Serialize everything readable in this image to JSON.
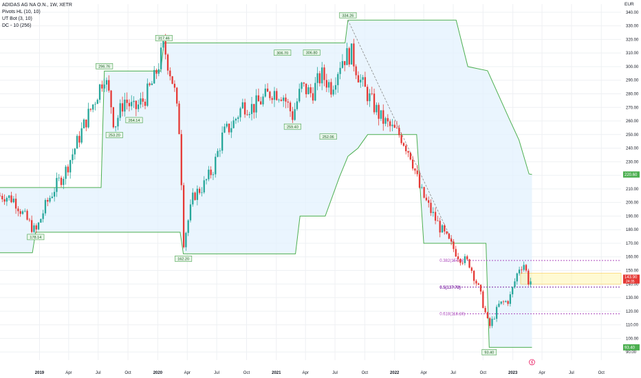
{
  "chart_title": "ADIDAS AG NA O.N., 1W, XETR",
  "indicators": [
    "Pivots HL (10, 10)",
    "UT Bot (3, 10)",
    "DC - 10 (256)"
  ],
  "currency": "EUR",
  "colors": {
    "up": "#26a69a",
    "down": "#e53935",
    "channel_line": "#4caf50",
    "channel_fill": "#e3f2fd",
    "fib": "#ab47bc",
    "fib_mid": "#7b1fa2",
    "grid": "#eef0f3"
  },
  "chart_data": {
    "type": "candlestick",
    "title": "ADIDAS AG NA O.N., 1W, XETR",
    "x_ticks": [
      "2019",
      "Apr",
      "Jul",
      "Oct",
      "2020",
      "Apr",
      "Jul",
      "Oct",
      "2021",
      "Apr",
      "Jul",
      "Oct",
      "2022",
      "Apr",
      "Jul",
      "Oct",
      "2023",
      "Apr",
      "Jul",
      "Oct"
    ],
    "y_ticks": [
      "90.00",
      "100.00",
      "110.00",
      "120.00",
      "130.00",
      "140.00",
      "150.00",
      "160.00",
      "170.00",
      "180.00",
      "190.00",
      "200.00",
      "210.00",
      "220.00",
      "230.00",
      "240.00",
      "250.00",
      "260.00",
      "270.00",
      "280.00",
      "290.00",
      "300.00",
      "310.00",
      "320.00",
      "330.00",
      "340.00"
    ],
    "ylim": [
      84,
      346
    ],
    "xlim": [
      "2018-09",
      "2023-12"
    ],
    "grid": true,
    "series": [
      {
        "name": "Close",
        "values": [
          {
            "date": "2018-09-15",
            "close": 205
          },
          {
            "date": "2018-10-15",
            "close": 202
          },
          {
            "date": "2018-11-15",
            "close": 190
          },
          {
            "date": "2018-12-20",
            "close": 178
          },
          {
            "date": "2019-01-20",
            "close": 198
          },
          {
            "date": "2019-02-20",
            "close": 212
          },
          {
            "date": "2019-03-20",
            "close": 222
          },
          {
            "date": "2019-04-20",
            "close": 240
          },
          {
            "date": "2019-05-20",
            "close": 258
          },
          {
            "date": "2019-06-20",
            "close": 275
          },
          {
            "date": "2019-07-20",
            "close": 294
          },
          {
            "date": "2019-08-10",
            "close": 272
          },
          {
            "date": "2019-08-20",
            "close": 256
          },
          {
            "date": "2019-09-20",
            "close": 276
          },
          {
            "date": "2019-10-20",
            "close": 268
          },
          {
            "date": "2019-11-20",
            "close": 276
          },
          {
            "date": "2019-12-20",
            "close": 290
          },
          {
            "date": "2020-01-20",
            "close": 315
          },
          {
            "date": "2020-02-20",
            "close": 285
          },
          {
            "date": "2020-03-10",
            "close": 248
          },
          {
            "date": "2020-03-20",
            "close": 170
          },
          {
            "date": "2020-04-20",
            "close": 205
          },
          {
            "date": "2020-05-20",
            "close": 212
          },
          {
            "date": "2020-06-20",
            "close": 225
          },
          {
            "date": "2020-07-20",
            "close": 250
          },
          {
            "date": "2020-08-20",
            "close": 258
          },
          {
            "date": "2020-09-20",
            "close": 272
          },
          {
            "date": "2020-10-20",
            "close": 270
          },
          {
            "date": "2020-11-20",
            "close": 276
          },
          {
            "date": "2020-12-20",
            "close": 282
          },
          {
            "date": "2021-01-20",
            "close": 280
          },
          {
            "date": "2021-02-20",
            "close": 264
          },
          {
            "date": "2021-03-20",
            "close": 285
          },
          {
            "date": "2021-04-20",
            "close": 280
          },
          {
            "date": "2021-05-20",
            "close": 294
          },
          {
            "date": "2021-06-20",
            "close": 285
          },
          {
            "date": "2021-07-20",
            "close": 305
          },
          {
            "date": "2021-08-20",
            "close": 310
          },
          {
            "date": "2021-09-20",
            "close": 288
          },
          {
            "date": "2021-10-20",
            "close": 275
          },
          {
            "date": "2021-11-20",
            "close": 262
          },
          {
            "date": "2021-12-20",
            "close": 255
          },
          {
            "date": "2022-01-20",
            "close": 249
          },
          {
            "date": "2022-02-20",
            "close": 235
          },
          {
            "date": "2022-03-20",
            "close": 210
          },
          {
            "date": "2022-04-20",
            "close": 195
          },
          {
            "date": "2022-05-20",
            "close": 182
          },
          {
            "date": "2022-06-20",
            "close": 170
          },
          {
            "date": "2022-07-20",
            "close": 160
          },
          {
            "date": "2022-08-20",
            "close": 155
          },
          {
            "date": "2022-09-20",
            "close": 135
          },
          {
            "date": "2022-10-20",
            "close": 108
          },
          {
            "date": "2022-11-20",
            "close": 125
          },
          {
            "date": "2022-12-20",
            "close": 128
          },
          {
            "date": "2023-01-20",
            "close": 152
          },
          {
            "date": "2023-02-05",
            "close": 155
          },
          {
            "date": "2023-02-20",
            "close": 140
          },
          {
            "date": "2023-03-01",
            "close": 143.9
          }
        ]
      },
      {
        "name": "DC upper",
        "values": [
          {
            "date": "2018-09-01",
            "v": 211
          },
          {
            "date": "2019-07-10",
            "v": 211
          },
          {
            "date": "2019-07-20",
            "v": 296.76
          },
          {
            "date": "2020-01-10",
            "v": 296.76
          },
          {
            "date": "2020-01-20",
            "v": 317.46
          },
          {
            "date": "2021-08-01",
            "v": 317.46
          },
          {
            "date": "2021-08-10",
            "v": 334.26
          },
          {
            "date": "2022-07-10",
            "v": 334.26
          },
          {
            "date": "2022-08-15",
            "v": 300
          },
          {
            "date": "2022-10-15",
            "v": 297
          },
          {
            "date": "2022-12-20",
            "v": 262
          },
          {
            "date": "2023-01-20",
            "v": 246
          },
          {
            "date": "2023-02-20",
            "v": 221
          },
          {
            "date": "2023-03-01",
            "v": 220.6
          }
        ]
      },
      {
        "name": "DC lower",
        "values": [
          {
            "date": "2018-09-01",
            "v": 163
          },
          {
            "date": "2018-12-10",
            "v": 163
          },
          {
            "date": "2018-12-20",
            "v": 178.14
          },
          {
            "date": "2020-03-10",
            "v": 178.14
          },
          {
            "date": "2020-03-20",
            "v": 162.2
          },
          {
            "date": "2021-03-01",
            "v": 162.2
          },
          {
            "date": "2021-03-15",
            "v": 190
          },
          {
            "date": "2021-06-01",
            "v": 190
          },
          {
            "date": "2021-07-15",
            "v": 219
          },
          {
            "date": "2021-08-10",
            "v": 234
          },
          {
            "date": "2021-09-10",
            "v": 240
          },
          {
            "date": "2021-10-10",
            "v": 250
          },
          {
            "date": "2022-03-10",
            "v": 250
          },
          {
            "date": "2022-04-01",
            "v": 170
          },
          {
            "date": "2022-10-10",
            "v": 170
          },
          {
            "date": "2022-10-20",
            "v": 93.4
          },
          {
            "date": "2023-03-01",
            "v": 93.4
          }
        ]
      }
    ],
    "pivot_labels": [
      {
        "date": "2018-12-20",
        "value": 178.14,
        "label": "178.14",
        "pos": "below"
      },
      {
        "date": "2019-07-20",
        "value": 296.76,
        "label": "296.76",
        "pos": "above"
      },
      {
        "date": "2019-08-20",
        "value": 253.2,
        "label": "253.20",
        "pos": "below"
      },
      {
        "date": "2019-10-20",
        "value": 264.14,
        "label": "264.14",
        "pos": "below"
      },
      {
        "date": "2020-01-20",
        "value": 317.46,
        "label": "317.46",
        "pos": "above"
      },
      {
        "date": "2020-03-20",
        "value": 162.2,
        "label": "162.20",
        "pos": "below"
      },
      {
        "date": "2021-01-20",
        "value": 306.7,
        "label": "306.70",
        "pos": "above"
      },
      {
        "date": "2021-02-20",
        "value": 259.4,
        "label": "259.40",
        "pos": "below"
      },
      {
        "date": "2021-04-20",
        "value": 306.8,
        "label": "306.80",
        "pos": "above"
      },
      {
        "date": "2021-06-10",
        "value": 252.06,
        "label": "252.06",
        "pos": "below"
      },
      {
        "date": "2021-08-10",
        "value": 334.26,
        "label": "334.26",
        "pos": "above"
      },
      {
        "date": "2022-10-20",
        "value": 93.4,
        "label": "93.40",
        "pos": "below"
      }
    ],
    "fibonacci_levels": [
      {
        "label": "0.382(157.32)",
        "value": 157.32
      },
      {
        "label": "0.5(137.72)",
        "value": 137.72
      },
      {
        "label": "0.618(118.10)",
        "value": 118.1
      }
    ],
    "trend_line": {
      "from": {
        "date": "2021-08-10",
        "value": 334.26
      },
      "to": {
        "date": "2022-07-01",
        "value": 170
      }
    },
    "price_labels": [
      {
        "label": "220.60",
        "value": 220.6,
        "color": "#4caf50"
      },
      {
        "label": "143.90",
        "value": 143.9,
        "color": "#e53935",
        "sub": "24:35"
      },
      {
        "label": "93.40",
        "value": 93.4,
        "color": "#4caf50"
      }
    ],
    "highlight_band": [
      140,
      148
    ]
  }
}
